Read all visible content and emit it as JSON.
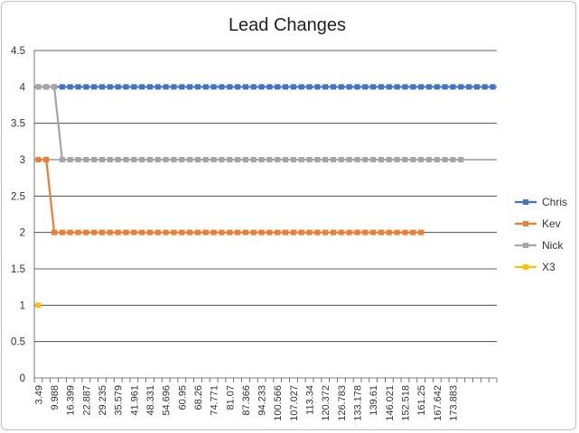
{
  "chart_data": {
    "type": "line",
    "title": "Lead Changes",
    "ylim": [
      0,
      4.5
    ],
    "yticks": [
      "0",
      "0.5",
      "1",
      "1.5",
      "2",
      "2.5",
      "3",
      "3.5",
      "4",
      "4.5"
    ],
    "x_tick_labels": [
      "3.49",
      "9.988",
      "16.399",
      "22.887",
      "29.235",
      "35.579",
      "41.961",
      "48.331",
      "54.696",
      "60.95",
      "68.26",
      "74.771",
      "81.07",
      "87.366",
      "94.233",
      "100.566",
      "107.027",
      "113.34",
      "120.372",
      "126.783",
      "133.178",
      "139.61",
      "146.021",
      "152.518",
      "161.25",
      "167.642",
      "173.883"
    ],
    "category_count": 58,
    "grid": true,
    "legend_position": "right",
    "series": [
      {
        "name": "Chris",
        "color": "#4472C4",
        "start": 0,
        "values": [
          4,
          4,
          4,
          4,
          4,
          4,
          4,
          4,
          4,
          4,
          4,
          4,
          4,
          4,
          4,
          4,
          4,
          4,
          4,
          4,
          4,
          4,
          4,
          4,
          4,
          4,
          4,
          4,
          4,
          4,
          4,
          4,
          4,
          4,
          4,
          4,
          4,
          4,
          4,
          4,
          4,
          4,
          4,
          4,
          4,
          4,
          4,
          4,
          4,
          4,
          4,
          4,
          4,
          4,
          4,
          4,
          4,
          4
        ]
      },
      {
        "name": "Kev",
        "color": "#ED7D31",
        "start": 0,
        "values": [
          3,
          3,
          2,
          2,
          2,
          2,
          2,
          2,
          2,
          2,
          2,
          2,
          2,
          2,
          2,
          2,
          2,
          2,
          2,
          2,
          2,
          2,
          2,
          2,
          2,
          2,
          2,
          2,
          2,
          2,
          2,
          2,
          2,
          2,
          2,
          2,
          2,
          2,
          2,
          2,
          2,
          2,
          2,
          2,
          2,
          2,
          2,
          2,
          2
        ]
      },
      {
        "name": "Nick",
        "color": "#A5A5A5",
        "start": 0,
        "values": [
          4,
          4,
          4,
          3,
          3,
          3,
          3,
          3,
          3,
          3,
          3,
          3,
          3,
          3,
          3,
          3,
          3,
          3,
          3,
          3,
          3,
          3,
          3,
          3,
          3,
          3,
          3,
          3,
          3,
          3,
          3,
          3,
          3,
          3,
          3,
          3,
          3,
          3,
          3,
          3,
          3,
          3,
          3,
          3,
          3,
          3,
          3,
          3,
          3,
          3,
          3,
          3,
          3,
          3
        ]
      },
      {
        "name": "X3",
        "color": "#FFC000",
        "start": 0,
        "values": [
          1
        ]
      }
    ]
  }
}
